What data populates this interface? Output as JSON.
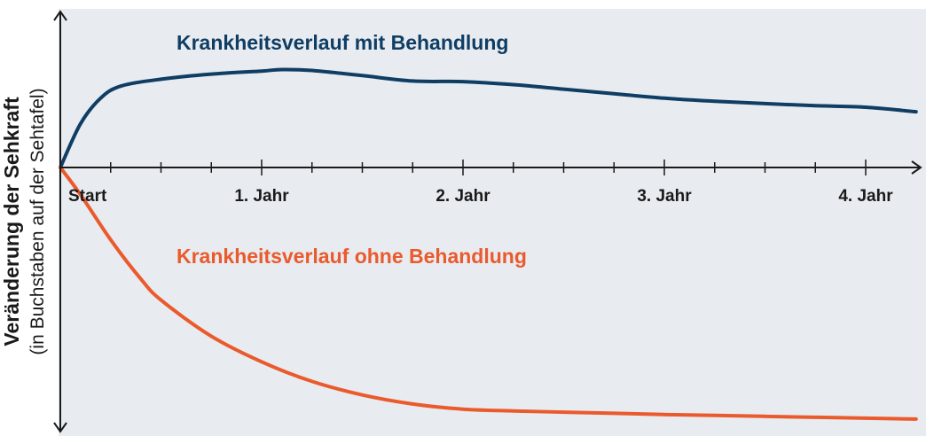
{
  "chart_data": {
    "type": "line",
    "ylabel": "Veränderung der Sehkraft",
    "ylabel_sub": "(in Buchstaben auf der Sehtafel)",
    "x_ticklabels": [
      "Start",
      "1. Jahr",
      "2. Jahr",
      "3. Jahr",
      "4. Jahr"
    ],
    "x_major_ticks": [
      0,
      1,
      2,
      3,
      4
    ],
    "x_minor_step": 0.25,
    "xlim": [
      0,
      4.25
    ],
    "ylim": [
      -8.5,
      5.2
    ],
    "grid": false,
    "background": "#e8ecf0",
    "series": [
      {
        "name": "Krankheitsverlauf mit Behandlung",
        "color": "#0f3d63",
        "x": [
          0,
          0.1,
          0.2,
          0.3,
          0.5,
          0.75,
          1.0,
          1.1,
          1.25,
          1.5,
          1.75,
          2.0,
          2.25,
          2.5,
          2.75,
          3.0,
          3.25,
          3.5,
          3.75,
          4.0,
          4.25
        ],
        "y": [
          0,
          1.45,
          2.3,
          2.7,
          2.93,
          3.1,
          3.2,
          3.25,
          3.22,
          3.05,
          2.87,
          2.85,
          2.75,
          2.6,
          2.45,
          2.3,
          2.2,
          2.12,
          2.05,
          2.0,
          1.85
        ]
      },
      {
        "name": "Krankheitsverlauf ohne Behandlung",
        "color": "#ea5a2c",
        "x": [
          0,
          0.1,
          0.25,
          0.4,
          0.5,
          0.75,
          1.0,
          1.25,
          1.5,
          1.75,
          2.0,
          2.25,
          2.5,
          2.75,
          3.0,
          3.25,
          3.5,
          3.75,
          4.0,
          4.25
        ],
        "y": [
          0,
          -0.9,
          -2.4,
          -3.7,
          -4.4,
          -5.6,
          -6.45,
          -7.1,
          -7.55,
          -7.85,
          -8.02,
          -8.08,
          -8.12,
          -8.16,
          -8.2,
          -8.23,
          -8.26,
          -8.29,
          -8.32,
          -8.35
        ]
      }
    ]
  }
}
